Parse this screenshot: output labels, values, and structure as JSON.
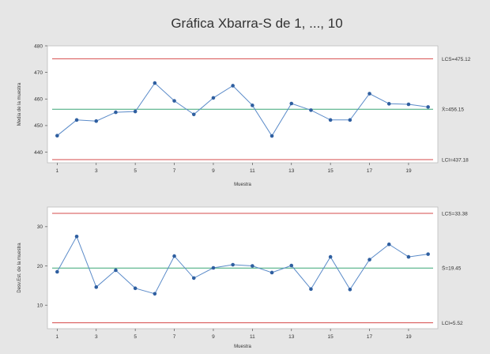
{
  "title": "Gráfica Xbarra-S de 1, ..., 10",
  "colors": {
    "background": "#e6e6e6",
    "plot_background": "#ffffff",
    "data_line": "#5b8bc9",
    "data_point": "#2f5fa0",
    "center_line": "#3aa676",
    "control_limit": "#d64b4b"
  },
  "chart_data": [
    {
      "type": "line",
      "xlabel": "Muestra",
      "ylabel": "Media de la muestra",
      "ylim": [
        436,
        480
      ],
      "xlim": [
        0.5,
        20.5
      ],
      "x_ticks": [
        1,
        3,
        5,
        7,
        9,
        11,
        13,
        15,
        17,
        19
      ],
      "y_ticks": [
        440,
        450,
        460,
        470,
        480
      ],
      "x": [
        1,
        2,
        3,
        4,
        5,
        6,
        7,
        8,
        9,
        10,
        11,
        12,
        13,
        14,
        15,
        16,
        17,
        18,
        19,
        20
      ],
      "values": [
        446.2,
        452.1,
        451.7,
        455.0,
        455.3,
        466.0,
        459.3,
        454.2,
        460.4,
        465.0,
        457.6,
        446.1,
        458.3,
        455.8,
        452.1,
        452.1,
        462.0,
        458.2,
        458.0,
        457.0
      ],
      "limits": [
        {
          "value": 475.12,
          "label": "LCS=475.12",
          "kind": "ucl"
        },
        {
          "value": 456.15,
          "label": "X̄=456.15",
          "kind": "center"
        },
        {
          "value": 437.18,
          "label": "LCI=437.18",
          "kind": "lcl"
        }
      ],
      "grid": false
    },
    {
      "type": "line",
      "xlabel": "Muestra",
      "ylabel": "Desv.Est. de la muestra",
      "ylim": [
        4,
        35
      ],
      "xlim": [
        0.5,
        20.5
      ],
      "x_ticks": [
        1,
        3,
        5,
        7,
        9,
        11,
        13,
        15,
        17,
        19
      ],
      "y_ticks": [
        10,
        20,
        30
      ],
      "x": [
        1,
        2,
        3,
        4,
        5,
        6,
        7,
        8,
        9,
        10,
        11,
        12,
        13,
        14,
        15,
        16,
        17,
        18,
        19,
        20
      ],
      "values": [
        18.5,
        27.5,
        14.6,
        18.9,
        14.3,
        12.9,
        22.5,
        16.9,
        19.5,
        20.3,
        20.0,
        18.3,
        20.1,
        14.1,
        22.3,
        14.0,
        21.6,
        25.5,
        22.3,
        23.0
      ],
      "limits": [
        {
          "value": 33.38,
          "label": "LCS=33.38",
          "kind": "ucl"
        },
        {
          "value": 19.45,
          "label": "S̄=19.45",
          "kind": "center"
        },
        {
          "value": 5.52,
          "label": "LCI=5.52",
          "kind": "lcl"
        }
      ],
      "grid": false
    }
  ]
}
